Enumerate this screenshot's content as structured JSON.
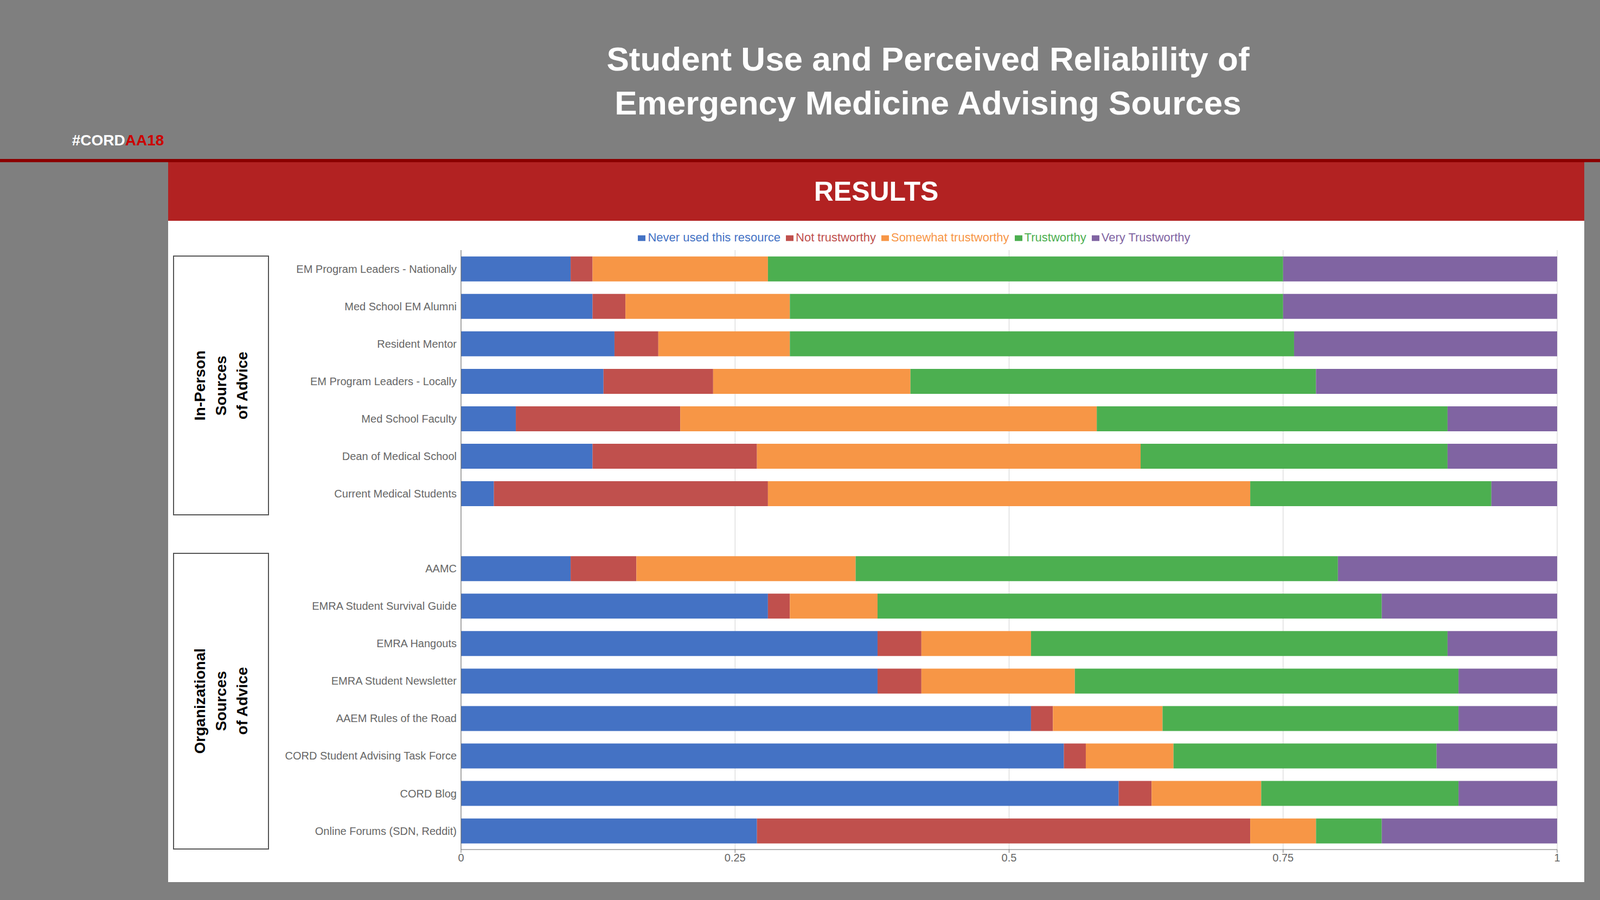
{
  "chart_data": {
    "type": "bar",
    "orientation": "horizontal",
    "stacked": true,
    "title": "Student Use and Perceived Reliability of\nEmergency Medicine Advising Sources",
    "annotations": [
      "#CORD",
      "AA18",
      "RESULTS",
      "In-Person\nSources\nof Advice",
      "Organizational\nSources\nof Advice"
    ],
    "categories": [
      "EM Program Leaders - Nationally",
      "Med School EM Alumni",
      "Resident Mentor",
      "EM Program Leaders - Locally",
      "Med School Faculty",
      "Dean of Medical School",
      "Current Medical Students",
      null,
      "AAMC",
      "EMRA Student Survival Guide",
      "EMRA Hangouts",
      "EMRA Student Newsletter",
      "AAEM Rules of the Road",
      "CORD Student Advising Task Force",
      "CORD Blog",
      "Online Forums (SDN, Reddit)"
    ],
    "series": [
      {
        "name": "Never used this resource",
        "color": "#4472C4",
        "values": [
          0.1,
          0.12,
          0.14,
          0.13,
          0.05,
          0.12,
          0.03,
          0.0,
          0.1,
          0.28,
          0.38,
          0.38,
          0.52,
          0.55,
          0.6,
          0.27
        ]
      },
      {
        "name": "Not trustworthy",
        "color": "#C0504D",
        "values": [
          0.02,
          0.03,
          0.04,
          0.1,
          0.15,
          0.15,
          0.25,
          0.0,
          0.06,
          0.02,
          0.04,
          0.04,
          0.02,
          0.02,
          0.03,
          0.45
        ]
      },
      {
        "name": "Somewhat trustworthy",
        "color": "#F79646",
        "values": [
          0.16,
          0.15,
          0.12,
          0.18,
          0.38,
          0.35,
          0.44,
          0.0,
          0.2,
          0.08,
          0.1,
          0.14,
          0.1,
          0.08,
          0.1,
          0.06
        ]
      },
      {
        "name": "Trustworthy",
        "color": "#4CAF50",
        "values": [
          0.47,
          0.45,
          0.46,
          0.37,
          0.32,
          0.28,
          0.22,
          0.0,
          0.44,
          0.46,
          0.38,
          0.35,
          0.27,
          0.24,
          0.18,
          0.06
        ]
      },
      {
        "name": "Very Trustworthy",
        "color": "#8064A2",
        "values": [
          0.25,
          0.25,
          0.24,
          0.22,
          0.1,
          0.1,
          0.06,
          0.0,
          0.2,
          0.16,
          0.1,
          0.09,
          0.09,
          0.11,
          0.09,
          0.16
        ]
      }
    ],
    "xlim": [
      0,
      1
    ],
    "xticks": [
      0,
      0.25,
      0.5,
      0.75,
      1
    ],
    "grid": true,
    "legend": "top"
  }
}
